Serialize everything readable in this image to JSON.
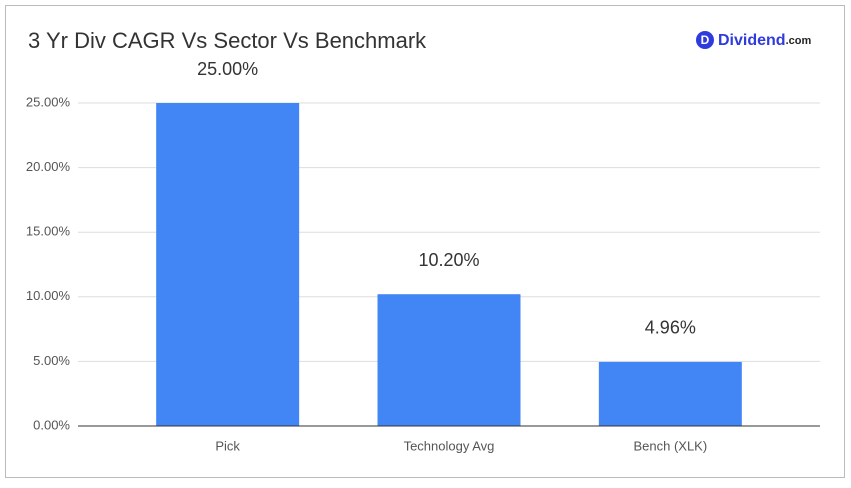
{
  "chart_data": {
    "type": "bar",
    "title": "3 Yr Div CAGR Vs Sector Vs Benchmark",
    "categories": [
      "Pick",
      "Technology Avg",
      "Bench (XLK)"
    ],
    "values": [
      25,
      10.2,
      4.96
    ],
    "value_labels": [
      "25.00%",
      "10.20%",
      "4.96%"
    ],
    "color": "#4285f4",
    "ylim": [
      0,
      25
    ],
    "yticks": [
      {
        "value": 0,
        "label": "0.00%"
      },
      {
        "value": 5,
        "label": "5.00%"
      },
      {
        "value": 10,
        "label": "10.00%"
      },
      {
        "value": 15,
        "label": "15.00%"
      },
      {
        "value": 20,
        "label": "20.00%"
      },
      {
        "value": 25,
        "label": "25.00%"
      }
    ],
    "grid": true
  },
  "logo": {
    "icon": "D",
    "name": "Dividend",
    "suffix": ".com"
  }
}
